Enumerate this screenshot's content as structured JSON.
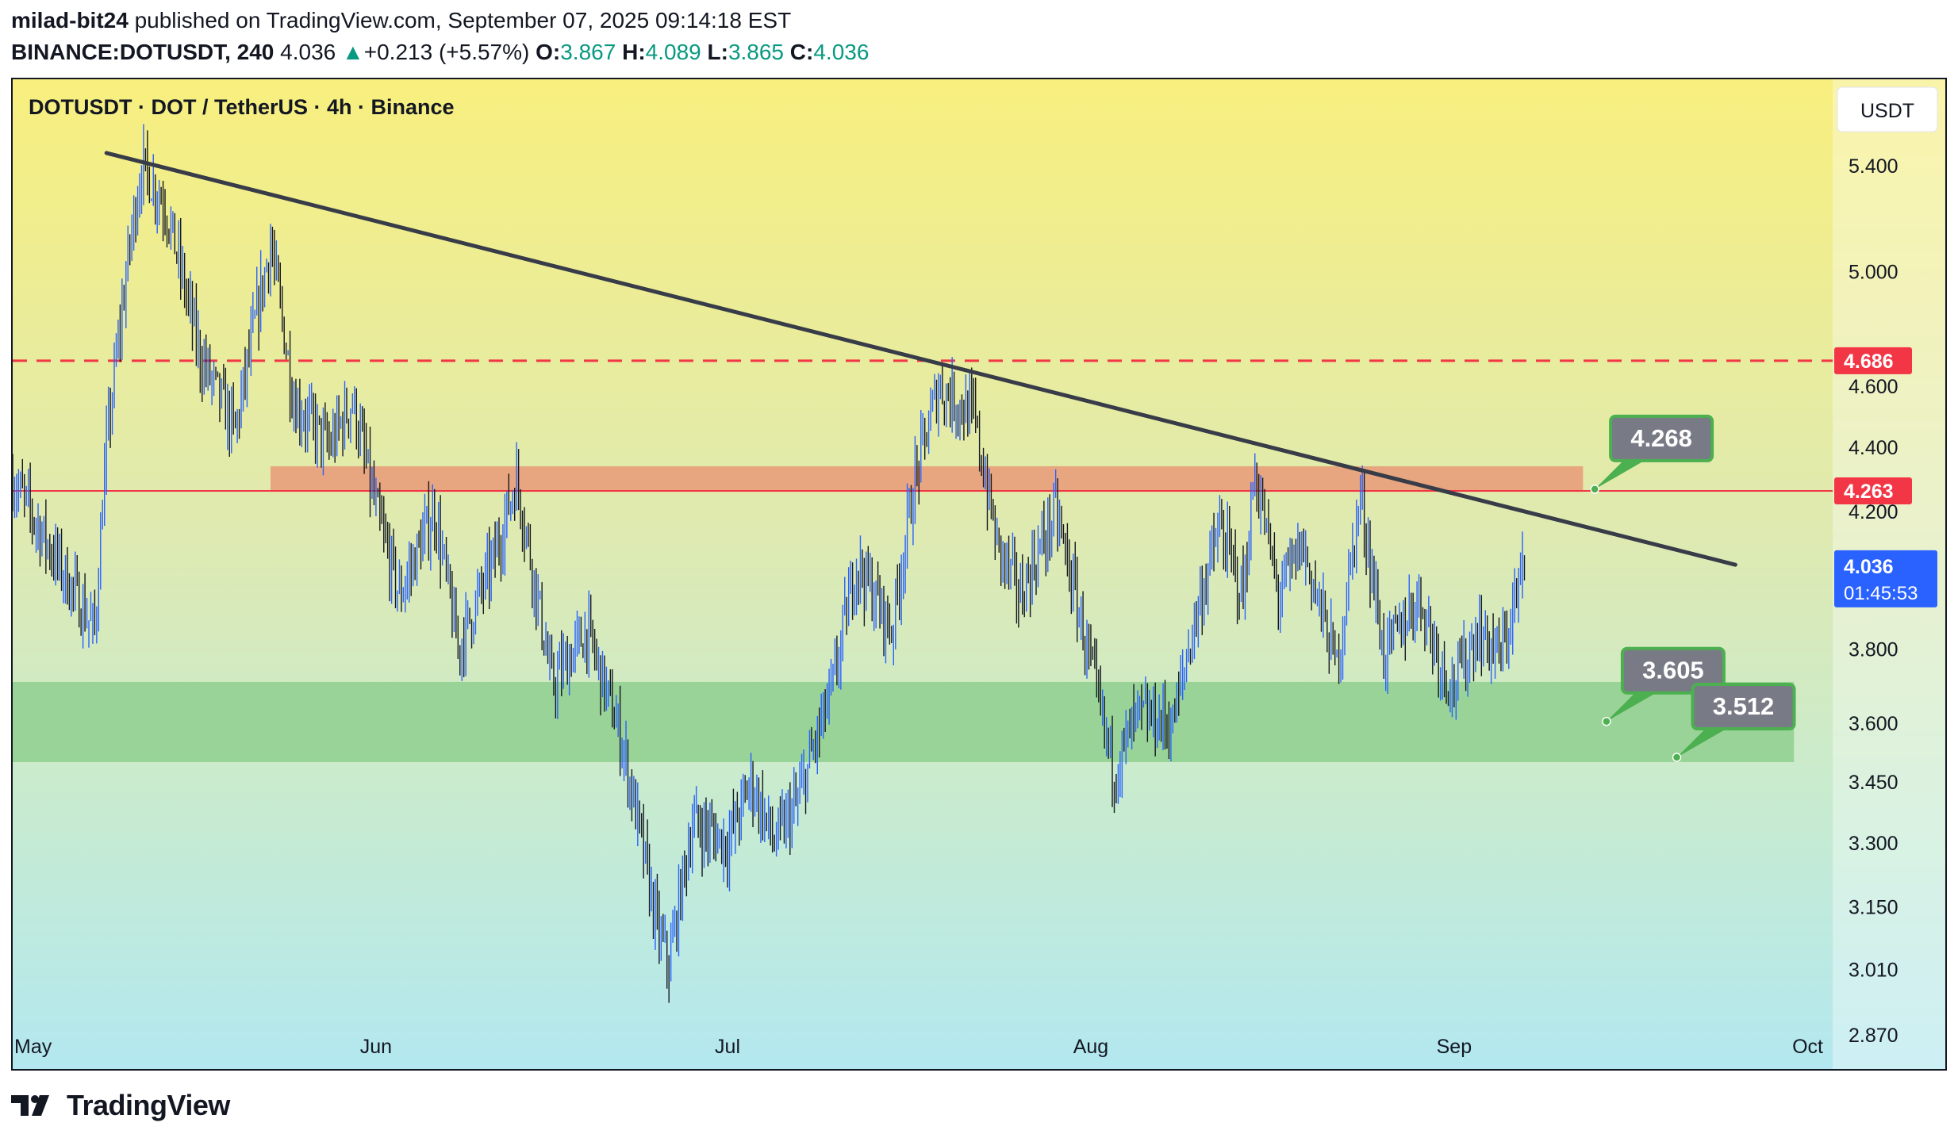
{
  "header": {
    "author": "milad-bit24",
    "published_text": " published on TradingView.com, September 07, 2025 09:14:18 EST",
    "symbol": "BINANCE:DOTUSDT, 240",
    "last": "4.036",
    "change_arrow": "▲",
    "change": "+0.213 (+5.57%)",
    "o_label": "O:",
    "o_value": "3.867",
    "h_label": "H:",
    "h_value": "4.089",
    "l_label": "L:",
    "l_value": "3.865",
    "c_label": "C:",
    "c_value": "4.036"
  },
  "chart_data": {
    "type": "candlestick",
    "title": "DOTUSDT · DOT / TetherUS · 4h · Binance",
    "currency_button": "USDT",
    "y_axis": {
      "scale": "log",
      "range": [
        2.8,
        5.75
      ],
      "ticks": [
        "5.400",
        "5.000",
        "4.600",
        "4.400",
        "4.200",
        "3.800",
        "3.600",
        "3.450",
        "3.300",
        "3.150",
        "3.010",
        "2.870"
      ]
    },
    "x_axis": {
      "range_days": [
        "2025-05-01",
        "2025-10-01"
      ],
      "ticks": [
        {
          "label": "May",
          "date": "2025-05-01"
        },
        {
          "label": "Jun",
          "date": "2025-06-01"
        },
        {
          "label": "Jul",
          "date": "2025-07-01"
        },
        {
          "label": "Aug",
          "date": "2025-08-01"
        },
        {
          "label": "Sep",
          "date": "2025-09-01"
        },
        {
          "label": "Oct",
          "date": "2025-10-01"
        }
      ]
    },
    "price_path": [
      [
        "2025-05-01",
        4.3
      ],
      [
        "2025-05-04",
        4.1
      ],
      [
        "2025-05-08",
        3.85
      ],
      [
        "2025-05-09",
        4.4
      ],
      [
        "2025-05-11",
        5.1
      ],
      [
        "2025-05-12",
        5.4
      ],
      [
        "2025-05-14",
        5.25
      ],
      [
        "2025-05-17",
        4.7
      ],
      [
        "2025-05-20",
        4.45
      ],
      [
        "2025-05-23",
        5.1
      ],
      [
        "2025-05-25",
        4.55
      ],
      [
        "2025-05-28",
        4.4
      ],
      [
        "2025-05-30",
        4.55
      ],
      [
        "2025-06-01",
        4.2
      ],
      [
        "2025-06-03",
        3.95
      ],
      [
        "2025-06-06",
        4.2
      ],
      [
        "2025-06-08",
        3.8
      ],
      [
        "2025-06-11",
        4.05
      ],
      [
        "2025-06-13",
        4.3
      ],
      [
        "2025-06-16",
        3.7
      ],
      [
        "2025-06-19",
        3.85
      ],
      [
        "2025-06-22",
        3.55
      ],
      [
        "2025-06-25",
        3.1
      ],
      [
        "2025-06-26",
        3.02
      ],
      [
        "2025-06-28",
        3.35
      ],
      [
        "2025-07-01",
        3.3
      ],
      [
        "2025-07-03",
        3.45
      ],
      [
        "2025-07-05",
        3.3
      ],
      [
        "2025-07-07",
        3.4
      ],
      [
        "2025-07-10",
        3.7
      ],
      [
        "2025-07-12",
        4.05
      ],
      [
        "2025-07-15",
        3.85
      ],
      [
        "2025-07-17",
        4.3
      ],
      [
        "2025-07-19",
        4.6
      ],
      [
        "2025-07-22",
        4.5
      ],
      [
        "2025-07-24",
        4.1
      ],
      [
        "2025-07-26",
        3.95
      ],
      [
        "2025-07-29",
        4.2
      ],
      [
        "2025-07-31",
        3.9
      ],
      [
        "2025-08-02",
        3.6
      ],
      [
        "2025-08-03",
        3.48
      ],
      [
        "2025-08-05",
        3.62
      ],
      [
        "2025-08-08",
        3.6
      ],
      [
        "2025-08-10",
        3.9
      ],
      [
        "2025-08-12",
        4.15
      ],
      [
        "2025-08-14",
        3.95
      ],
      [
        "2025-08-15",
        4.32
      ],
      [
        "2025-08-17",
        3.95
      ],
      [
        "2025-08-19",
        4.1
      ],
      [
        "2025-08-22",
        3.75
      ],
      [
        "2025-08-24",
        4.25
      ],
      [
        "2025-08-26",
        3.78
      ],
      [
        "2025-08-29",
        3.95
      ],
      [
        "2025-08-31",
        3.75
      ],
      [
        "2025-09-01",
        3.7
      ],
      [
        "2025-09-03",
        3.85
      ],
      [
        "2025-09-05",
        3.78
      ],
      [
        "2025-09-07",
        4.036
      ]
    ],
    "trendline": {
      "start": [
        "2025-05-09",
        5.45
      ],
      "end": [
        "2025-09-25",
        4.04
      ],
      "color": "#383c48"
    },
    "hlines": [
      {
        "price": 4.686,
        "label": "4.686",
        "style": "dashed",
        "color": "#f23645"
      },
      {
        "price": 4.263,
        "label": "4.263",
        "style": "solid",
        "color": "#f23645"
      }
    ],
    "zones": [
      {
        "from": 4.26,
        "to": 4.34,
        "start": "2025-05-23",
        "end": "2025-09-12",
        "color": "#e89a78"
      },
      {
        "from": 3.5,
        "to": 3.71,
        "start": "2025-05-01",
        "end": "2025-09-30",
        "color": "#8fcf8f"
      }
    ],
    "callouts": [
      {
        "label": "4.268",
        "price": 4.268,
        "date": "2025-09-13"
      },
      {
        "label": "3.605",
        "price": 3.605,
        "date": "2025-09-14"
      },
      {
        "label": "3.512",
        "price": 3.512,
        "date": "2025-09-20"
      }
    ],
    "last_price": {
      "price": 4.036,
      "label": "4.036",
      "countdown": "01:45:53",
      "color": "#2962ff"
    }
  },
  "footer": {
    "brand": "TradingView"
  }
}
